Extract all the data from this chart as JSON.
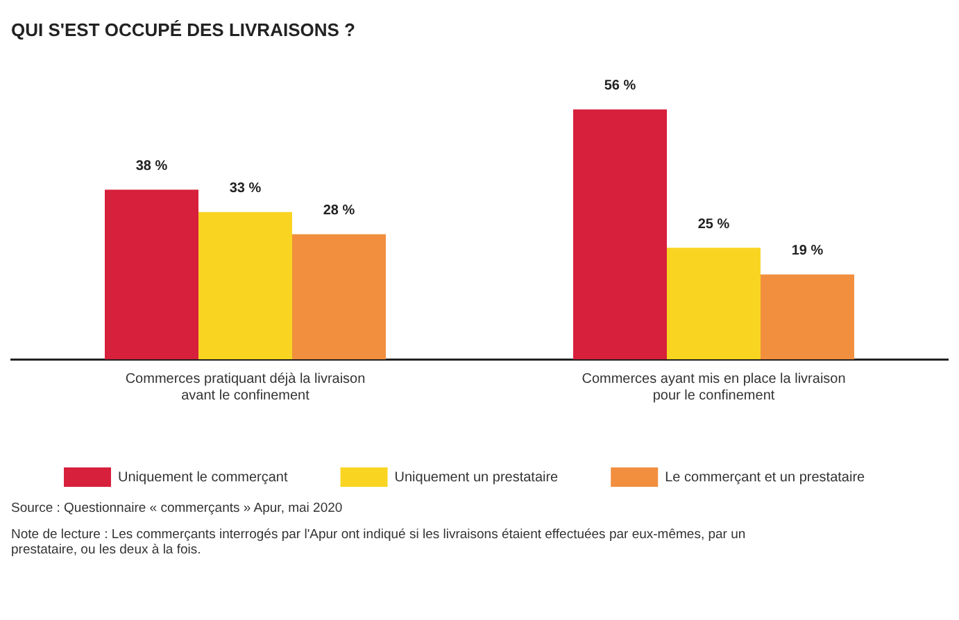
{
  "chart_data": {
    "type": "bar",
    "title": "QUI S'EST OCCUPÉ DES LIVRAISONS ?",
    "categories": [
      "Commerces pratiquant déjà la livraison avant le confinement",
      "Commerces ayant mis en place la livraison pour le confinement"
    ],
    "series": [
      {
        "name": "Uniquement le commerçant",
        "color": "#d7203c",
        "values": [
          38,
          56
        ],
        "value_labels": [
          "38 %",
          "56 %"
        ]
      },
      {
        "name": "Uniquement un prestataire",
        "color": "#f9d522",
        "values": [
          33,
          25
        ],
        "value_labels": [
          "33 %",
          "25 %"
        ]
      },
      {
        "name": "Le commerçant et un prestataire",
        "color": "#f18f3f",
        "values": [
          28,
          19
        ],
        "value_labels": [
          "28 %",
          "19 %"
        ]
      }
    ],
    "tick_labels": "x",
    "grid": false,
    "legend": "bottom",
    "annotations": [
      "Source : Questionnaire « commerçants » Apur, mai 2020",
      "Note de lecture : Les commerçants interrogés par l'Apur ont indiqué si les livraisons étaient effectuées par eux-mêmes, par un prestataire, ou les deux à la fois."
    ]
  }
}
